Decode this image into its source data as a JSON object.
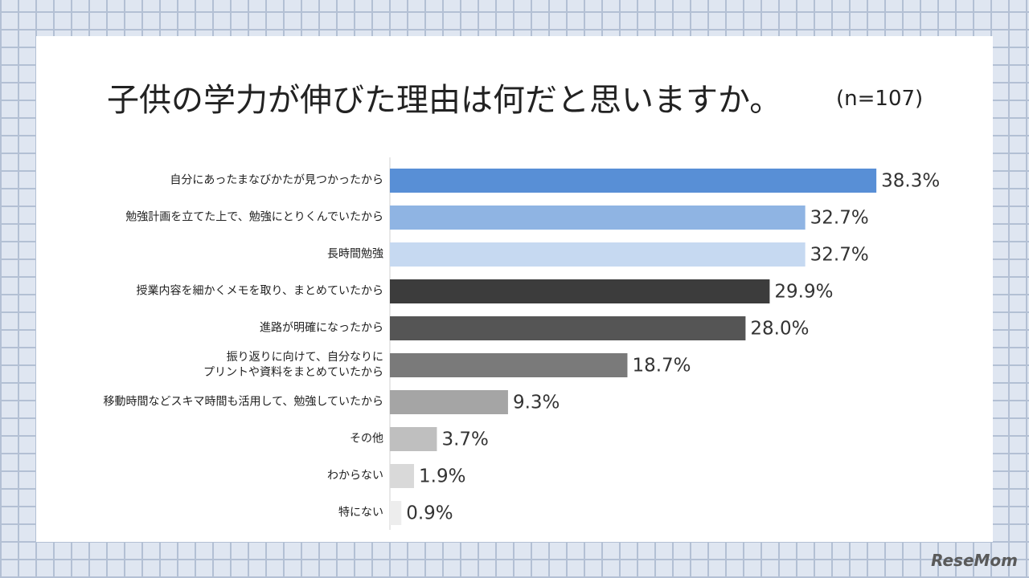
{
  "chart_data": {
    "type": "barh",
    "title": "子供の学力が伸びた理由は何だと思いますか。",
    "subtitle": "(n=107)",
    "categories": [
      "自分にあったまなびかたが見つかったから",
      "勉強計画を立てた上で、勉強にとりくんでいたから",
      "長時間勉強",
      "授業内容を細かくメモを取り、まとめていたから",
      "進路が明確になったから",
      "振り返りに向けて、自分なりに\nプリントや資料をまとめていたから",
      "移動時間などスキマ時間も活用して、勉強していたから",
      "その他",
      "わからない",
      "特にない"
    ],
    "values": [
      38.3,
      32.7,
      32.7,
      29.9,
      28.0,
      18.7,
      9.3,
      3.7,
      1.9,
      0.9
    ],
    "value_labels": [
      "38.3%",
      "32.7%",
      "32.7%",
      "29.9%",
      "28.0%",
      "18.7%",
      "9.3%",
      "3.7%",
      "1.9%",
      "0.9%"
    ],
    "colors": [
      "#588fd6",
      "#8fb4e3",
      "#c6d9f1",
      "#3c3c3c",
      "#555555",
      "#7a7a7a",
      "#a5a5a5",
      "#bfbfbf",
      "#d9d9d9",
      "#ededed"
    ],
    "watermark": "ReseMom"
  }
}
